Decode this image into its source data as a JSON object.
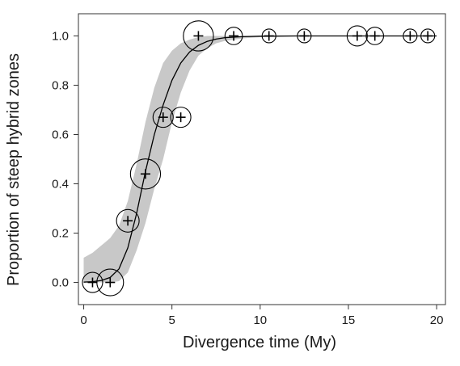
{
  "chart_data": {
    "type": "scatter",
    "title": "",
    "xlabel": "Divergence time (My)",
    "ylabel": "Proportion of steep hybrid zones",
    "xlim": [
      -0.3,
      20.5
    ],
    "ylim": [
      -0.09,
      1.09
    ],
    "xticks": [
      0,
      5,
      10,
      15,
      20
    ],
    "yticks": [
      0.0,
      0.2,
      0.4,
      0.6,
      0.8,
      1.0
    ],
    "ytick_labels": [
      "0.0",
      "0.2",
      "0.4",
      "0.6",
      "0.8",
      "1.0"
    ],
    "grid": false,
    "legend": "none",
    "points": [
      {
        "x": 0.5,
        "y": 0.0,
        "weight": 3
      },
      {
        "x": 1.5,
        "y": 0.0,
        "weight": 6
      },
      {
        "x": 2.5,
        "y": 0.25,
        "weight": 4
      },
      {
        "x": 3.5,
        "y": 0.44,
        "weight": 8
      },
      {
        "x": 4.5,
        "y": 0.67,
        "weight": 3
      },
      {
        "x": 5.5,
        "y": 0.67,
        "weight": 3
      },
      {
        "x": 6.5,
        "y": 1.0,
        "weight": 8
      },
      {
        "x": 8.5,
        "y": 1.0,
        "weight": 2
      },
      {
        "x": 10.5,
        "y": 1.0,
        "weight": 1
      },
      {
        "x": 12.5,
        "y": 1.0,
        "weight": 1
      },
      {
        "x": 15.5,
        "y": 1.0,
        "weight": 3
      },
      {
        "x": 16.5,
        "y": 1.0,
        "weight": 2
      },
      {
        "x": 18.5,
        "y": 1.0,
        "weight": 1
      },
      {
        "x": 19.5,
        "y": 1.0,
        "weight": 1
      }
    ],
    "fit_curve": {
      "type": "logistic",
      "x": [
        0.0,
        0.5,
        1.0,
        1.5,
        2.0,
        2.5,
        3.0,
        3.5,
        4.0,
        4.5,
        5.0,
        5.5,
        6.0,
        6.5,
        7.0,
        7.5,
        8.0,
        9.0,
        10.0,
        12.0,
        14.0,
        16.0,
        18.0,
        20.0
      ],
      "y": [
        0.001,
        0.003,
        0.008,
        0.02,
        0.055,
        0.14,
        0.28,
        0.45,
        0.6,
        0.72,
        0.82,
        0.89,
        0.935,
        0.962,
        0.978,
        0.987,
        0.993,
        0.997,
        0.999,
        1.0,
        1.0,
        1.0,
        1.0,
        1.0
      ],
      "lower": [
        0.0,
        0.0,
        0.0,
        0.0,
        0.005,
        0.04,
        0.13,
        0.24,
        0.38,
        0.5,
        0.65,
        0.77,
        0.86,
        0.92,
        0.95,
        0.97,
        0.98,
        0.99,
        0.995,
        0.998,
        1.0,
        1.0,
        1.0,
        1.0
      ],
      "upper": [
        0.1,
        0.12,
        0.15,
        0.18,
        0.23,
        0.33,
        0.48,
        0.65,
        0.79,
        0.89,
        0.94,
        0.97,
        0.985,
        0.995,
        1.0,
        1.0,
        1.0,
        1.0,
        1.0,
        1.0,
        1.0,
        1.0,
        1.0,
        1.0
      ]
    },
    "colors": {
      "band": "#c8c8c8",
      "line": "#000000",
      "marker": "#000000",
      "axis": "#333333"
    }
  }
}
